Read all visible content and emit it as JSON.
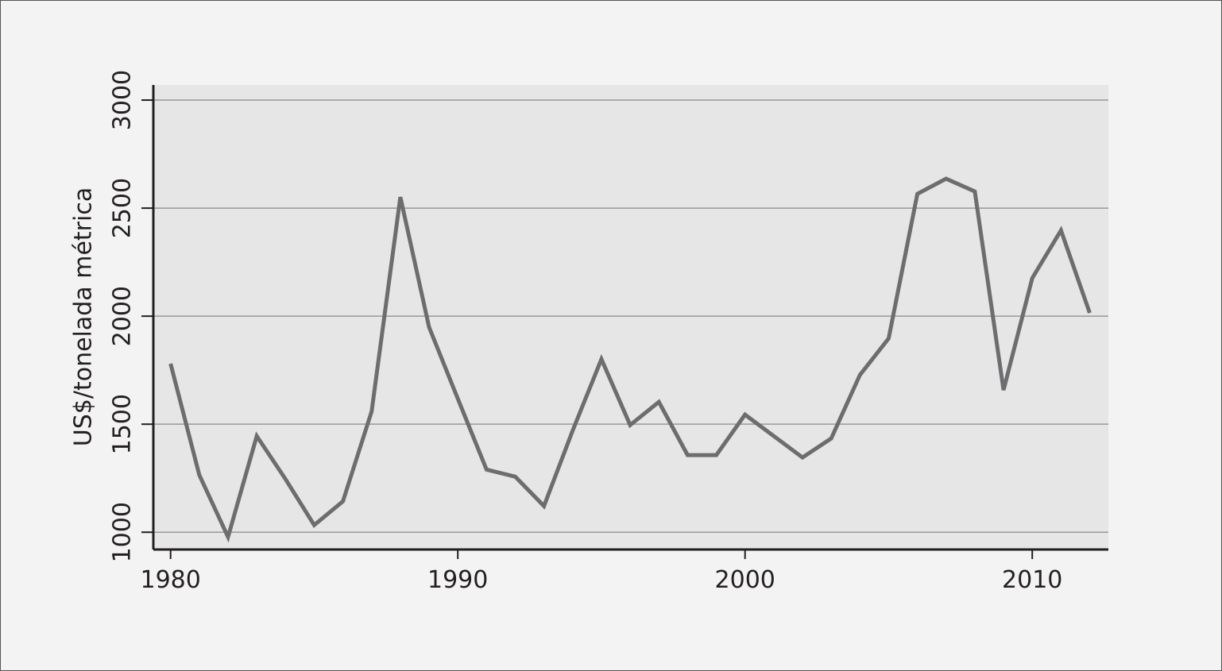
{
  "chart_data": {
    "type": "line",
    "y_label": "US$/tonelada métrica",
    "x": [
      1980,
      1981,
      1982,
      1983,
      1984,
      1985,
      1986,
      1987,
      1988,
      1989,
      1990,
      1991,
      1992,
      1993,
      1994,
      1995,
      1996,
      1997,
      1998,
      1999,
      2000,
      2001,
      2002,
      2003,
      2004,
      2005,
      2006,
      2007,
      2008,
      2009,
      2010,
      2011,
      2012
    ],
    "series": [
      {
        "color": "#6d6d70",
        "values": [
          1780,
          1265,
          978,
          1445,
          1246,
          1033,
          1143,
          1559,
          2551,
          1949,
          1618,
          1290,
          1257,
          1121,
          1471,
          1801,
          1496,
          1603,
          1357,
          1357,
          1544,
          1445,
          1346,
          1434,
          1728,
          1897,
          2566,
          2636,
          2577,
          1658,
          2176,
          2397,
          2015
        ]
      }
    ],
    "xlim": [
      1979.4,
      2012.65
    ],
    "ylim": [
      920,
      3070
    ],
    "xticks": [
      1980,
      1990,
      2000,
      2010
    ],
    "yticks": [
      1000,
      1500,
      2000,
      2500,
      3000
    ],
    "grid": true
  }
}
